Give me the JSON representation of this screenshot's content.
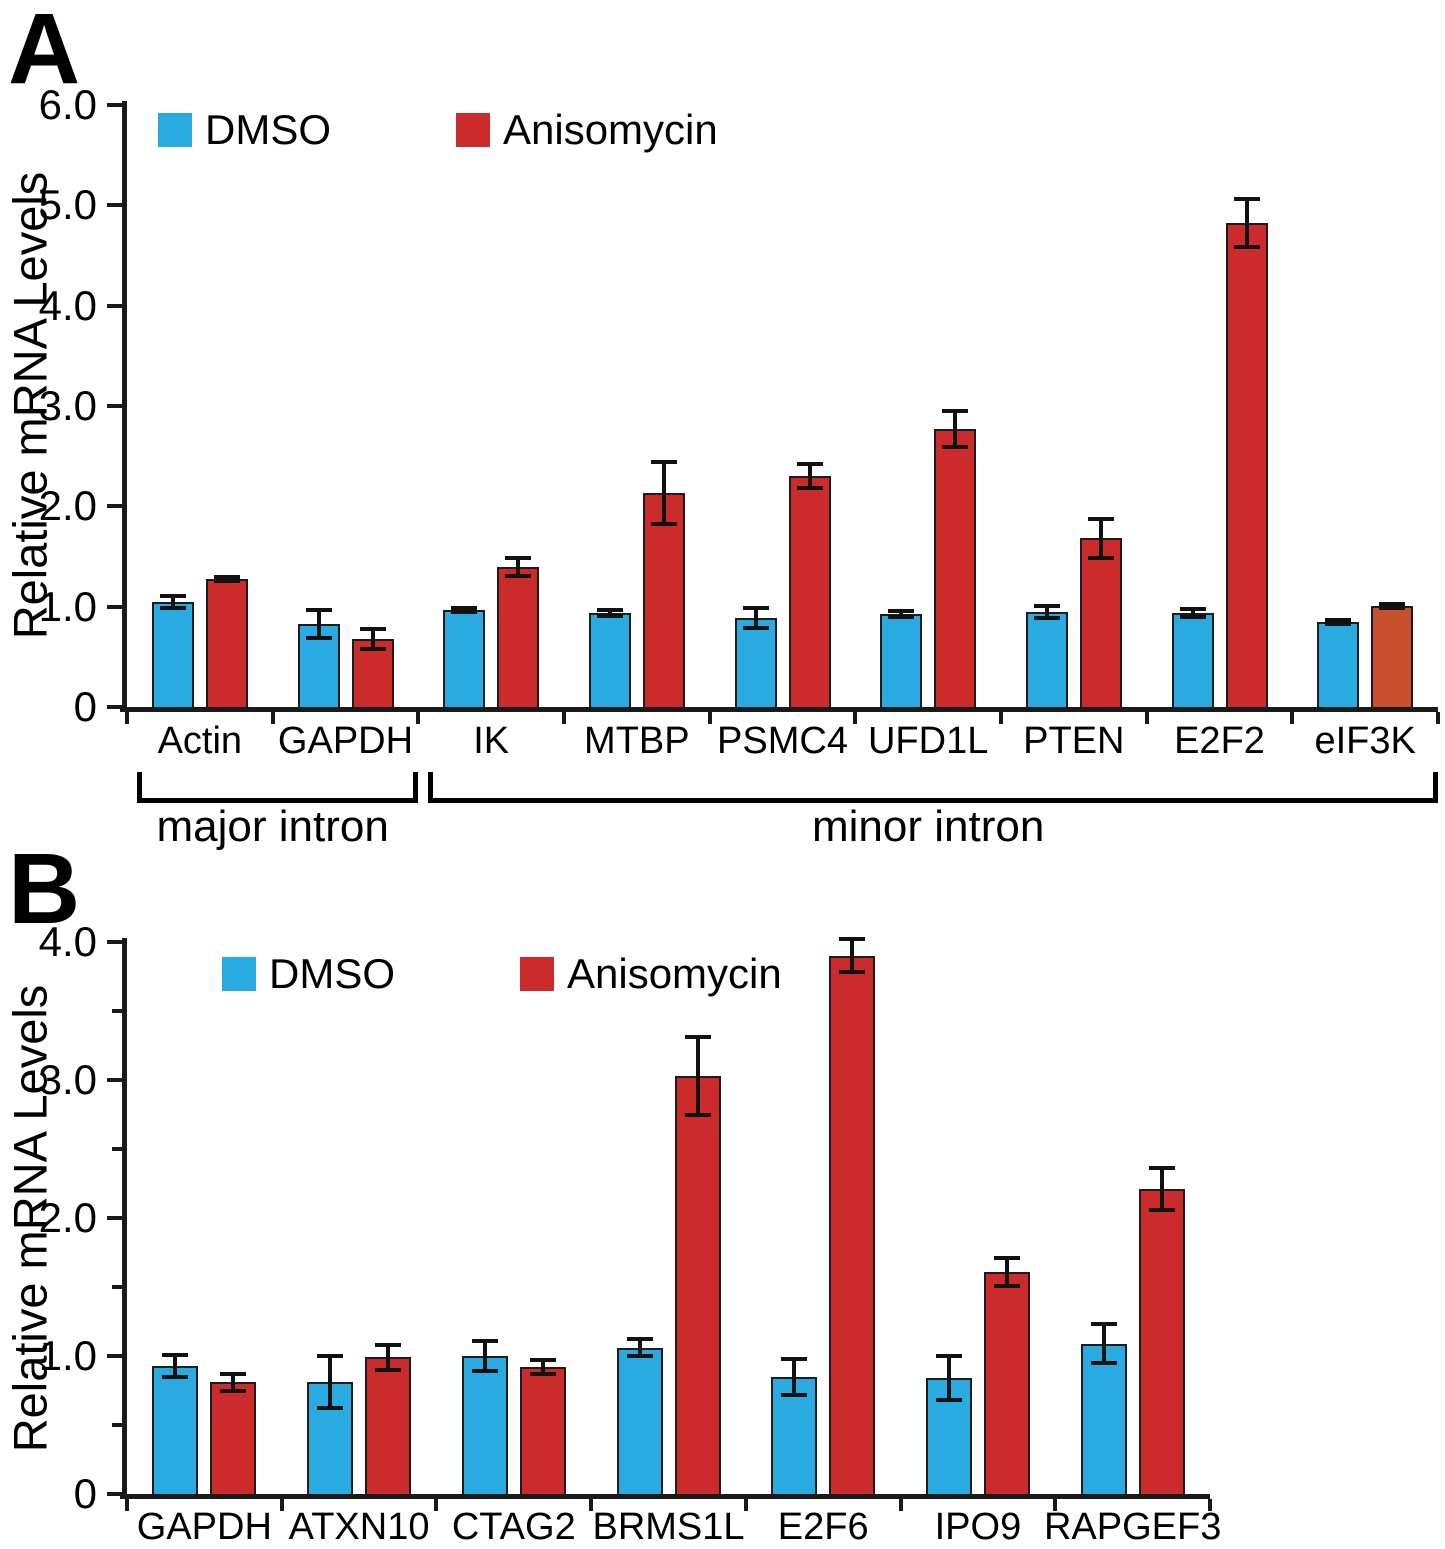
{
  "figure_title": "",
  "panels": [
    {
      "letter": "A"
    },
    {
      "letter": "B"
    }
  ],
  "colors": {
    "dmso_blue": "#29ABE2",
    "anisomycin_red": "#CB2B2A",
    "eif3k_anisomycin_variant": "#C8502E",
    "axis_black": "#1a1a1a"
  },
  "chart_data": [
    {
      "type": "bar",
      "panel": "A",
      "title": "",
      "xlabel": "",
      "ylabel": "Relative mRNA Levels",
      "ylim": [
        0,
        6.0
      ],
      "ytick_values": [
        0,
        1.0,
        2.0,
        3.0,
        4.0,
        5.0,
        6.0
      ],
      "ytick_labels": [
        "0",
        "1.0",
        "2.0",
        "3.0",
        "4.0",
        "5.0",
        "6.0"
      ],
      "minor_tick_values": [],
      "grid": false,
      "legend_position": "top-left-inside",
      "categories": [
        "Actin",
        "GAPDH",
        "IK",
        "MTBP",
        "PSMC4",
        "UFD1L",
        "PTEN",
        "E2F2",
        "eIF3K"
      ],
      "series": [
        {
          "name": "DMSO",
          "color": "#29ABE2",
          "values": [
            1.05,
            0.83,
            0.97,
            0.94,
            0.89,
            0.93,
            0.95,
            0.94,
            0.85
          ],
          "errors": [
            0.06,
            0.14,
            0.02,
            0.03,
            0.1,
            0.03,
            0.06,
            0.04,
            0.02
          ]
        },
        {
          "name": "Anisomycin",
          "color": "#CB2B2A",
          "values": [
            1.28,
            0.68,
            1.4,
            2.13,
            2.3,
            2.77,
            1.68,
            4.82,
            1.01
          ],
          "errors": [
            0.02,
            0.1,
            0.09,
            0.31,
            0.12,
            0.18,
            0.19,
            0.24,
            0.02
          ],
          "bar_color_overrides": {
            "8": "#C8502E"
          }
        }
      ],
      "annotations": [
        {
          "label": "major intron",
          "from_category": 0,
          "to_category": 1
        },
        {
          "label": "minor intron",
          "from_category": 2,
          "to_category": 8
        }
      ]
    },
    {
      "type": "bar",
      "panel": "B",
      "title": "",
      "xlabel": "",
      "ylabel": "Relative mRNA Levels",
      "ylim": [
        0,
        4.0
      ],
      "ytick_values": [
        0,
        1.0,
        2.0,
        3.0,
        4.0
      ],
      "ytick_labels": [
        "0",
        "1.0",
        "2.0",
        "3.0",
        "4.0"
      ],
      "minor_tick_values": [
        0.5,
        1.5,
        2.5,
        3.5
      ],
      "grid": false,
      "legend_position": "top-left-inside",
      "categories": [
        "GAPDH",
        "ATXN10",
        "CTAG2",
        "BRMS1L",
        "E2F6",
        "IPO9",
        "RAPGEF3"
      ],
      "series": [
        {
          "name": "DMSO",
          "color": "#29ABE2",
          "values": [
            0.93,
            0.81,
            1.0,
            1.06,
            0.85,
            0.84,
            1.09
          ],
          "errors": [
            0.08,
            0.19,
            0.11,
            0.06,
            0.13,
            0.16,
            0.14
          ]
        },
        {
          "name": "Anisomycin",
          "color": "#CB2B2A",
          "values": [
            0.81,
            0.99,
            0.92,
            3.03,
            3.9,
            1.61,
            2.21
          ],
          "errors": [
            0.06,
            0.09,
            0.05,
            0.28,
            0.12,
            0.1,
            0.15
          ]
        }
      ],
      "annotations": []
    }
  ]
}
